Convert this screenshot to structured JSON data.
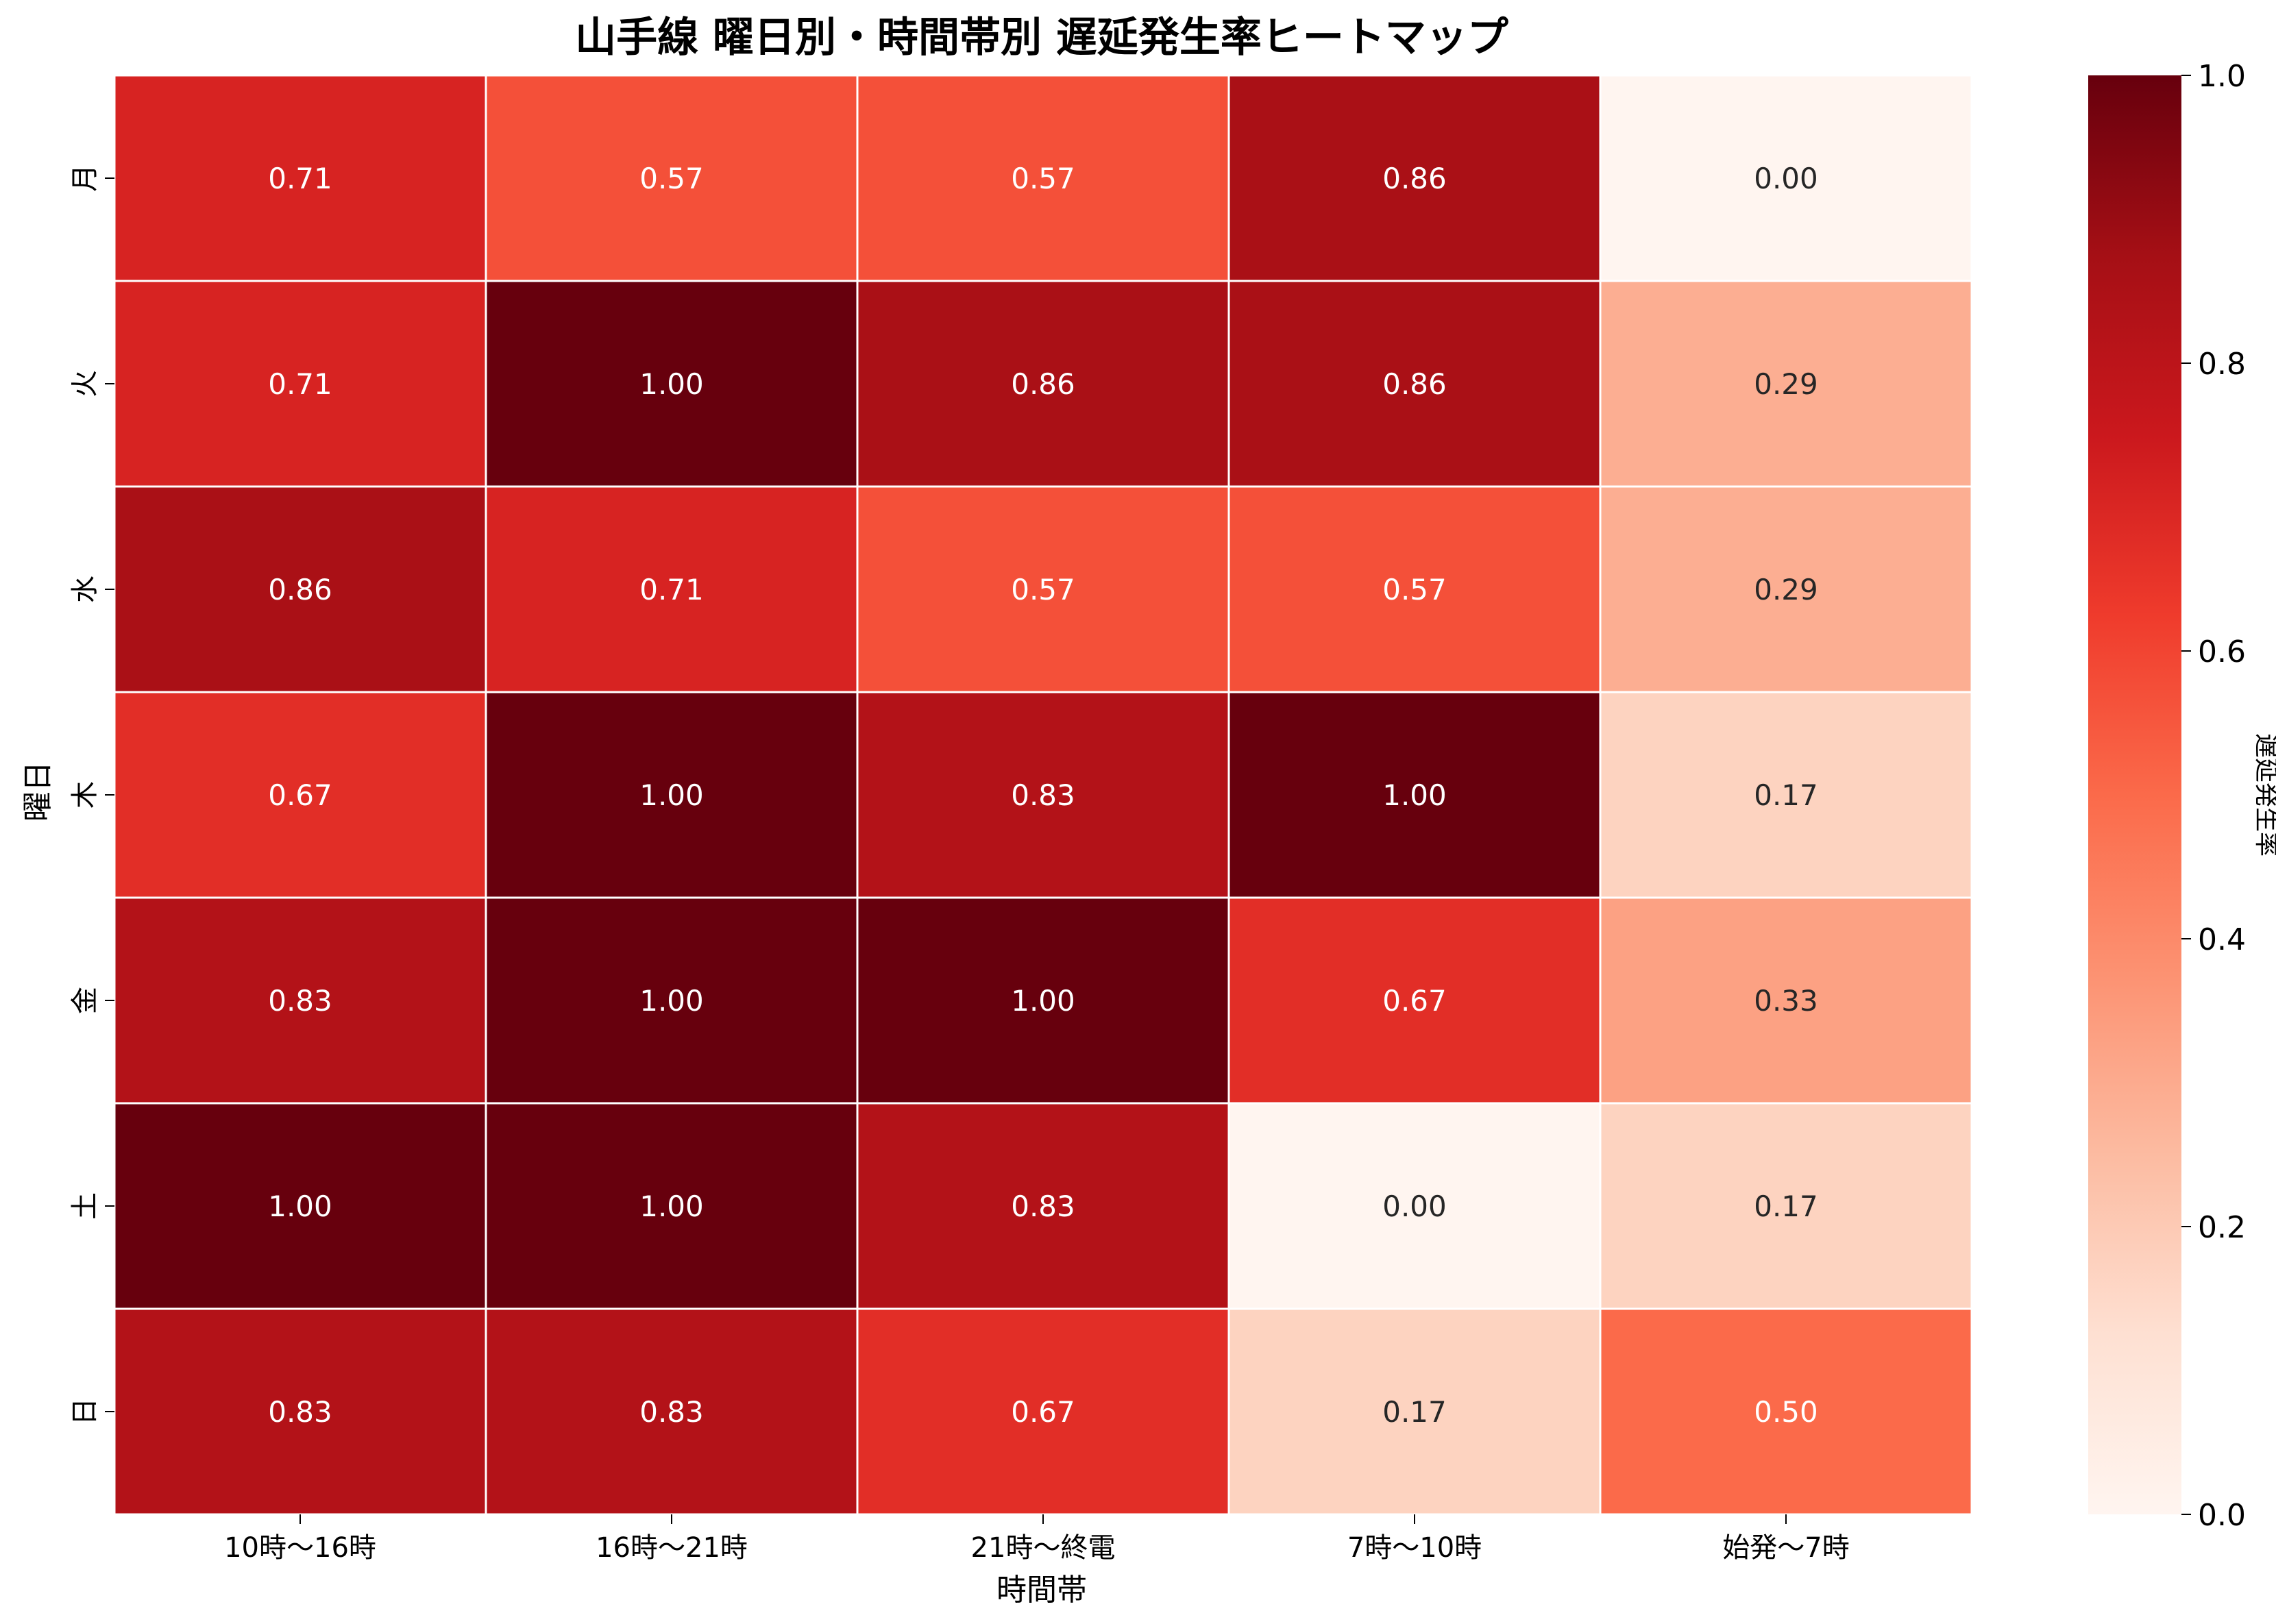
{
  "chart_data": {
    "type": "heatmap",
    "title": "山手線 曜日別・時間帯別 遅延発生率ヒートマップ",
    "xlabel": "時間帯",
    "ylabel": "曜日",
    "x_categories": [
      "10時〜16時",
      "16時〜21時",
      "21時〜終電",
      "7時〜10時",
      "始発〜7時"
    ],
    "y_categories": [
      "月",
      "火",
      "水",
      "木",
      "金",
      "土",
      "日"
    ],
    "values": [
      [
        0.71,
        0.57,
        0.57,
        0.86,
        0.0
      ],
      [
        0.71,
        1.0,
        0.86,
        0.86,
        0.29
      ],
      [
        0.86,
        0.71,
        0.57,
        0.57,
        0.29
      ],
      [
        0.67,
        1.0,
        0.83,
        1.0,
        0.17
      ],
      [
        0.83,
        1.0,
        1.0,
        0.67,
        0.33
      ],
      [
        1.0,
        1.0,
        0.83,
        0.0,
        0.17
      ],
      [
        0.83,
        0.83,
        0.67,
        0.17,
        0.5
      ]
    ],
    "colorbar": {
      "label": "遅延発生率",
      "range": [
        0.0,
        1.0
      ],
      "ticks": [
        "0.0",
        "0.2",
        "0.4",
        "0.6",
        "0.8",
        "1.0"
      ]
    },
    "colormap": "Reds",
    "annotations": true
  }
}
